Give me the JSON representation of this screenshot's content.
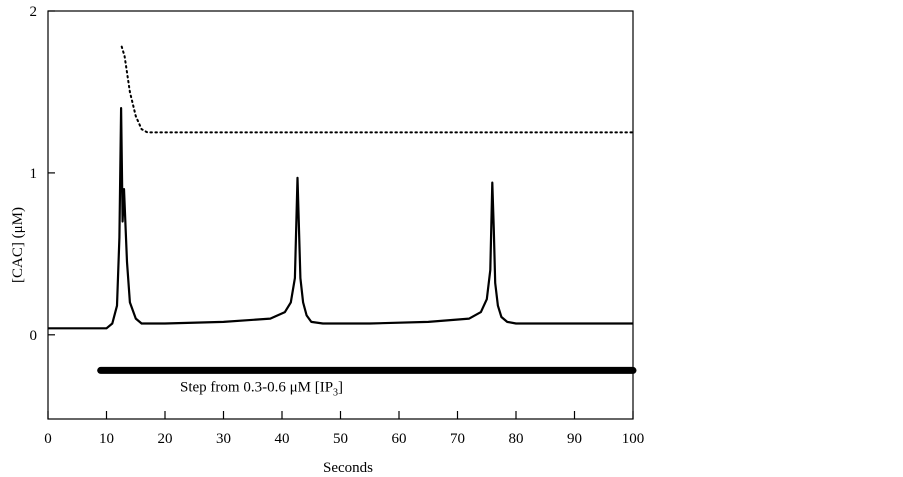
{
  "chart_data": {
    "type": "line",
    "title": "",
    "xlabel": "Seconds",
    "ylabel": "[CAC] (μM)",
    "xlim": [
      0,
      100
    ],
    "ylim": [
      -0.52,
      2
    ],
    "x_ticks": [
      0,
      10,
      20,
      30,
      40,
      50,
      60,
      70,
      80,
      90,
      100
    ],
    "y_ticks": [
      0,
      1,
      2
    ],
    "grid": false,
    "series": [
      {
        "style": "solid",
        "x": [
          0,
          10,
          11,
          11.8,
          12.2,
          12.5,
          12.75,
          13.0,
          13.5,
          14,
          15,
          16,
          20,
          30,
          38,
          40.5,
          41.5,
          42.2,
          42.65,
          42.9,
          43.15,
          43.6,
          44.2,
          45,
          47,
          55,
          65,
          72,
          74,
          75,
          75.6,
          75.95,
          76.2,
          76.45,
          76.9,
          77.5,
          78.5,
          80,
          90,
          100
        ],
        "y": [
          0.04,
          0.04,
          0.07,
          0.18,
          0.6,
          1.4,
          0.7,
          0.9,
          0.45,
          0.2,
          0.1,
          0.07,
          0.07,
          0.08,
          0.1,
          0.14,
          0.2,
          0.35,
          0.97,
          0.65,
          0.35,
          0.2,
          0.12,
          0.08,
          0.07,
          0.07,
          0.08,
          0.1,
          0.14,
          0.22,
          0.4,
          0.94,
          0.65,
          0.32,
          0.18,
          0.11,
          0.08,
          0.07,
          0.07,
          0.07
        ]
      },
      {
        "style": "dotted",
        "x": [
          12.6,
          13.1,
          14,
          15,
          16,
          17,
          20,
          40,
          60,
          80,
          100
        ],
        "y": [
          1.78,
          1.72,
          1.5,
          1.35,
          1.27,
          1.25,
          1.25,
          1.25,
          1.25,
          1.25,
          1.25
        ]
      }
    ],
    "annotations": [
      {
        "type": "bar",
        "x_start": 9,
        "x_end": 100,
        "y": -0.22,
        "label": "Step from 0.3-0.6 μM [IP",
        "label_sub": "3",
        "label_end": "]"
      }
    ]
  }
}
